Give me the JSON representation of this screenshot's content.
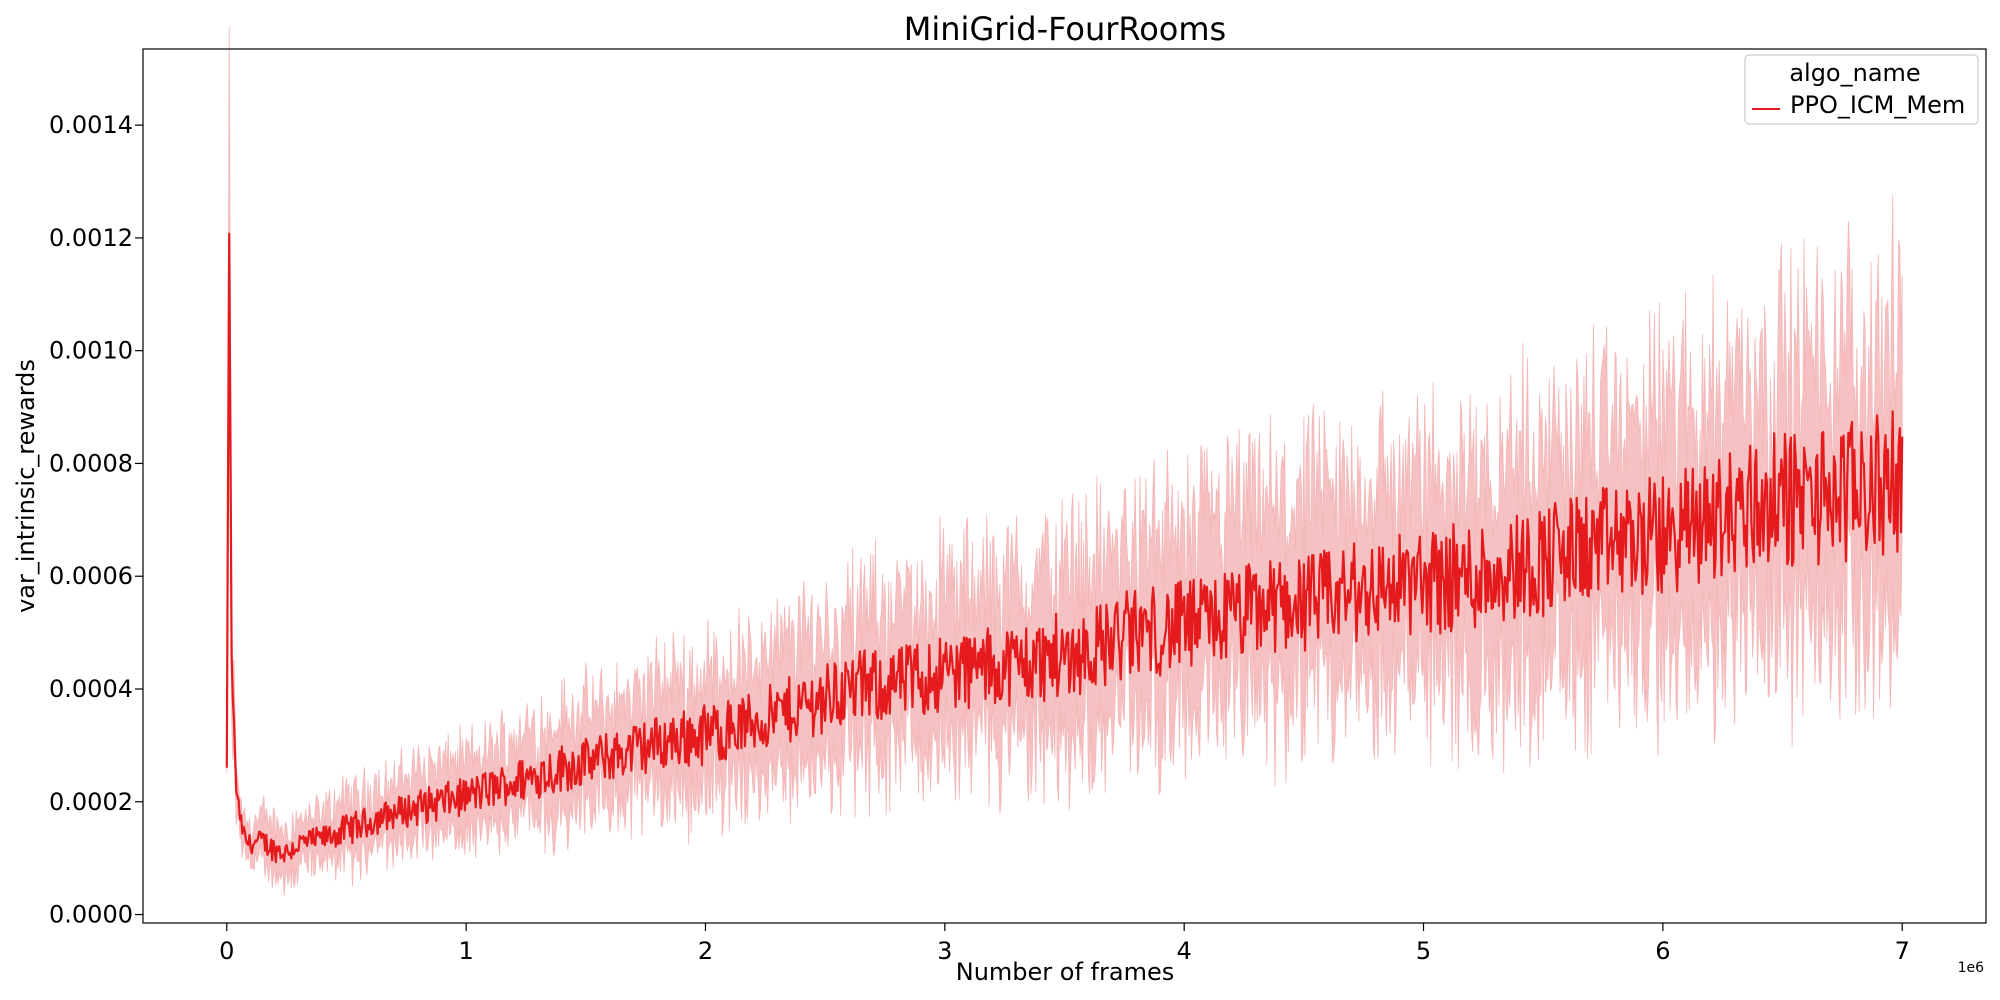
{
  "chart_data": {
    "type": "line",
    "title": "MiniGrid-FourRooms",
    "xlabel": "Number of frames",
    "ylabel": "var_intrinsic_rewards",
    "x_offset_label": "1e6",
    "xlim": [
      -0.35,
      7.35
    ],
    "ylim": [
      -1.5e-05,
      0.001535
    ],
    "x_ticks": [
      0,
      1,
      2,
      3,
      4,
      5,
      6,
      7
    ],
    "x_tick_labels": [
      "0",
      "1",
      "2",
      "3",
      "4",
      "5",
      "6",
      "7"
    ],
    "y_ticks": [
      0.0,
      0.0002,
      0.0004,
      0.0006,
      0.0008,
      0.001,
      0.0012,
      0.0014
    ],
    "y_tick_labels": [
      "0.0000",
      "0.0002",
      "0.0004",
      "0.0006",
      "0.0008",
      "0.0010",
      "0.0012",
      "0.0014"
    ],
    "grid": false,
    "legend": {
      "title": "algo_name",
      "placement": "top-right"
    },
    "colors": {
      "line": "#e41a1c",
      "band": "#f4b6b7"
    },
    "series": [
      {
        "name": "PPO_ICM_Mem",
        "x": [
          0.0,
          0.01,
          0.02,
          0.04,
          0.06,
          0.08,
          0.1,
          0.15,
          0.2,
          0.25,
          0.3,
          0.4,
          0.5,
          0.6,
          0.7,
          0.8,
          0.9,
          1.0,
          1.2,
          1.4,
          1.6,
          1.8,
          2.0,
          2.2,
          2.4,
          2.6,
          2.8,
          3.0,
          3.2,
          3.4,
          3.6,
          3.8,
          4.0,
          4.2,
          4.4,
          4.6,
          4.8,
          5.0,
          5.2,
          5.4,
          5.6,
          5.8,
          6.0,
          6.2,
          6.4,
          6.6,
          6.8,
          7.0
        ],
        "y": [
          0.00026,
          0.00123,
          0.00045,
          0.00022,
          0.00016,
          0.00013,
          0.000125,
          0.00013,
          0.000115,
          0.00011,
          0.000125,
          0.000135,
          0.00015,
          0.000165,
          0.00018,
          0.00019,
          0.0002,
          0.00021,
          0.000235,
          0.00026,
          0.00028,
          0.000305,
          0.00032,
          0.00034,
          0.00037,
          0.0004,
          0.00041,
          0.00043,
          0.00044,
          0.00045,
          0.00047,
          0.0005,
          0.00051,
          0.00053,
          0.00055,
          0.00056,
          0.00058,
          0.00059,
          0.0006,
          0.00062,
          0.00064,
          0.00066,
          0.00067,
          0.0007,
          0.00073,
          0.00074,
          0.00075,
          0.00077
        ],
        "ci_halfwidth": [
          1e-05,
          0.00023,
          0.0001,
          4e-05,
          3e-05,
          3e-05,
          3e-05,
          4e-05,
          4e-05,
          4e-05,
          4e-05,
          4e-05,
          5e-05,
          5e-05,
          5e-05,
          6e-05,
          6e-05,
          6e-05,
          7e-05,
          8e-05,
          8e-05,
          9e-05,
          0.0001,
          0.0001,
          0.00011,
          0.00012,
          0.00012,
          0.00013,
          0.00013,
          0.00014,
          0.00014,
          0.00015,
          0.00015,
          0.00016,
          0.00016,
          0.00016,
          0.00017,
          0.00017,
          0.00018,
          0.00018,
          0.00019,
          0.00019,
          0.0002,
          0.00021,
          0.00022,
          0.00022,
          0.00023,
          0.00023
        ]
      }
    ]
  }
}
